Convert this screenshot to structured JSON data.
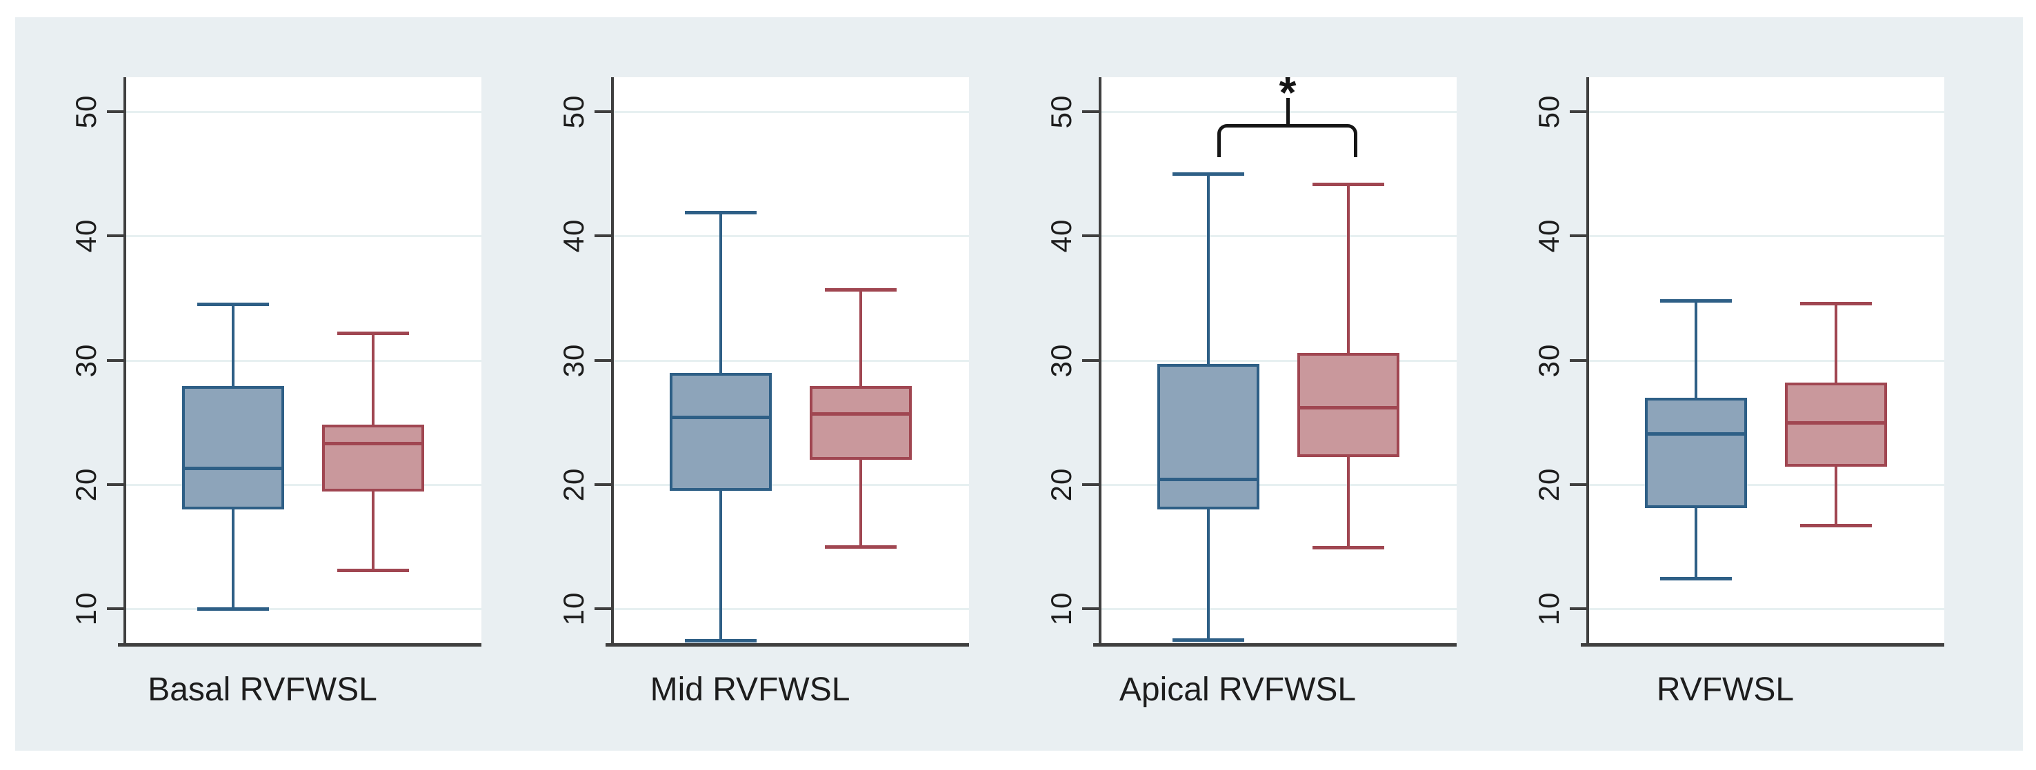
{
  "figure": {
    "page_background": "#ffffff",
    "background": "#e9eff2",
    "plot_background": "#ffffff",
    "axis_color": "#3f3f3f",
    "gridline_color": "#e7f0f1",
    "text_color": "#1d1d1d",
    "annotation_color": "#161616"
  },
  "chart_data": {
    "type": "box",
    "title": "",
    "xlabel": "",
    "ylabel": "",
    "grid": true,
    "legend": "none",
    "y_ticks": [
      10,
      20,
      30,
      40,
      50
    ],
    "y_range": [
      7.2,
      52.8
    ],
    "series_colors": [
      {
        "name": "blue-group",
        "fill": "#8da4ba",
        "stroke": "#2e5f86"
      },
      {
        "name": "red-group",
        "fill": "#c9989c",
        "stroke": "#a04651"
      }
    ],
    "panels": [
      {
        "label": "Basal RVFWSL",
        "boxes": [
          {
            "series": "blue-group",
            "whisker_low": 10.0,
            "q1": 18.0,
            "median": 21.3,
            "q3": 27.9,
            "whisker_high": 34.5
          },
          {
            "series": "red-group",
            "whisker_low": 13.1,
            "q1": 19.4,
            "median": 23.3,
            "q3": 24.8,
            "whisker_high": 32.2
          }
        ],
        "annotation": null
      },
      {
        "label": "Mid RVFWSL",
        "boxes": [
          {
            "series": "blue-group",
            "whisker_low": 7.4,
            "q1": 19.5,
            "median": 25.4,
            "q3": 29.0,
            "whisker_high": 41.9
          },
          {
            "series": "red-group",
            "whisker_low": 15.0,
            "q1": 22.0,
            "median": 25.7,
            "q3": 27.9,
            "whisker_high": 35.7
          }
        ],
        "annotation": null
      },
      {
        "label": "Apical RVFWSL",
        "boxes": [
          {
            "series": "blue-group",
            "whisker_low": 7.5,
            "q1": 18.0,
            "median": 20.4,
            "q3": 29.7,
            "whisker_high": 45.0
          },
          {
            "series": "red-group",
            "whisker_low": 14.9,
            "q1": 22.2,
            "median": 26.2,
            "q3": 30.6,
            "whisker_high": 44.2
          }
        ],
        "annotation": {
          "type": "bracket",
          "label": "*",
          "spans": [
            "blue-group",
            "red-group"
          ],
          "y_value": 49.0
        }
      },
      {
        "label": "RVFWSL",
        "boxes": [
          {
            "series": "blue-group",
            "whisker_low": 12.4,
            "q1": 18.1,
            "median": 24.1,
            "q3": 27.0,
            "whisker_high": 34.8
          },
          {
            "series": "red-group",
            "whisker_low": 16.7,
            "q1": 21.4,
            "median": 25.0,
            "q3": 28.2,
            "whisker_high": 34.6
          }
        ],
        "annotation": null
      }
    ]
  }
}
